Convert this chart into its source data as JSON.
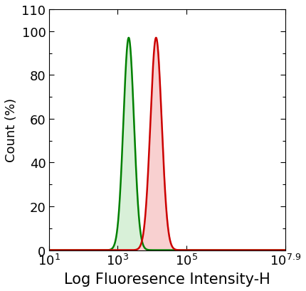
{
  "xlabel": "Log Fluoresence Intensity-H",
  "ylabel": "Count (%)",
  "xlim_log": [
    1,
    7.9
  ],
  "ylim": [
    0,
    110
  ],
  "yticks": [
    0,
    20,
    40,
    60,
    80,
    100,
    110
  ],
  "ytick_labels": [
    "0",
    "20",
    "40",
    "60",
    "80",
    "100",
    "110"
  ],
  "xtick_positions": [
    10,
    1000,
    100000,
    79432823
  ],
  "green_peak_log": 3.32,
  "green_sigma_log": 0.155,
  "green_peak_height": 97,
  "red_peak_log": 4.12,
  "red_sigma_log": 0.165,
  "red_peak_height": 97,
  "green_line_color": "#008000",
  "green_fill_color": "#d8f0d8",
  "red_line_color": "#cc0000",
  "red_fill_color": "#f8d0d0",
  "background_color": "#ffffff",
  "line_width": 1.8,
  "xlabel_fontsize": 15,
  "ylabel_fontsize": 13,
  "tick_fontsize": 13
}
